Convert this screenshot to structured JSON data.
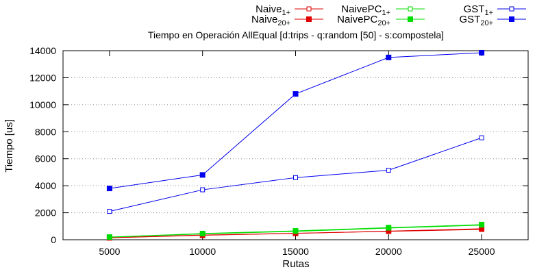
{
  "chart_data": {
    "type": "line",
    "title": "Tiempo en Operación AllEqual [d:trips - q:random [50] - s:compostela]",
    "xlabel": "Rutas",
    "ylabel": "Tiempo [us]",
    "x": [
      5000,
      10000,
      15000,
      20000,
      25000
    ],
    "x_ticks": [
      "5000",
      "10000",
      "15000",
      "20000",
      "25000"
    ],
    "xlim": [
      2500,
      27500
    ],
    "ylim": [
      0,
      14000
    ],
    "y_ticks": [
      "0",
      "2000",
      "4000",
      "6000",
      "8000",
      "10000",
      "12000",
      "14000"
    ],
    "grid": "horizontal dotted",
    "legend_position": "top, outside plot area",
    "series": [
      {
        "name": "Naive",
        "sub": "1+",
        "color": "#e00000",
        "marker": "open-square",
        "values": [
          150,
          350,
          480,
          620,
          760
        ]
      },
      {
        "name": "Naive",
        "sub": "20+",
        "color": "#e00000",
        "marker": "filled-square",
        "values": [
          140,
          330,
          470,
          640,
          820
        ]
      },
      {
        "name": "NaivePC",
        "sub": "1+",
        "color": "#00dd00",
        "marker": "open-square",
        "values": [
          190,
          430,
          620,
          860,
          1080
        ]
      },
      {
        "name": "NaivePC",
        "sub": "20+",
        "color": "#00dd00",
        "marker": "filled-square",
        "values": [
          200,
          460,
          660,
          900,
          1120
        ]
      },
      {
        "name": "GST",
        "sub": "1+",
        "color": "#0000ee",
        "marker": "open-square",
        "values": [
          2100,
          3700,
          4600,
          5150,
          7550
        ]
      },
      {
        "name": "GST",
        "sub": "20+",
        "color": "#0000ee",
        "marker": "filled-square",
        "values": [
          3800,
          4800,
          10800,
          13500,
          13850
        ]
      }
    ]
  }
}
